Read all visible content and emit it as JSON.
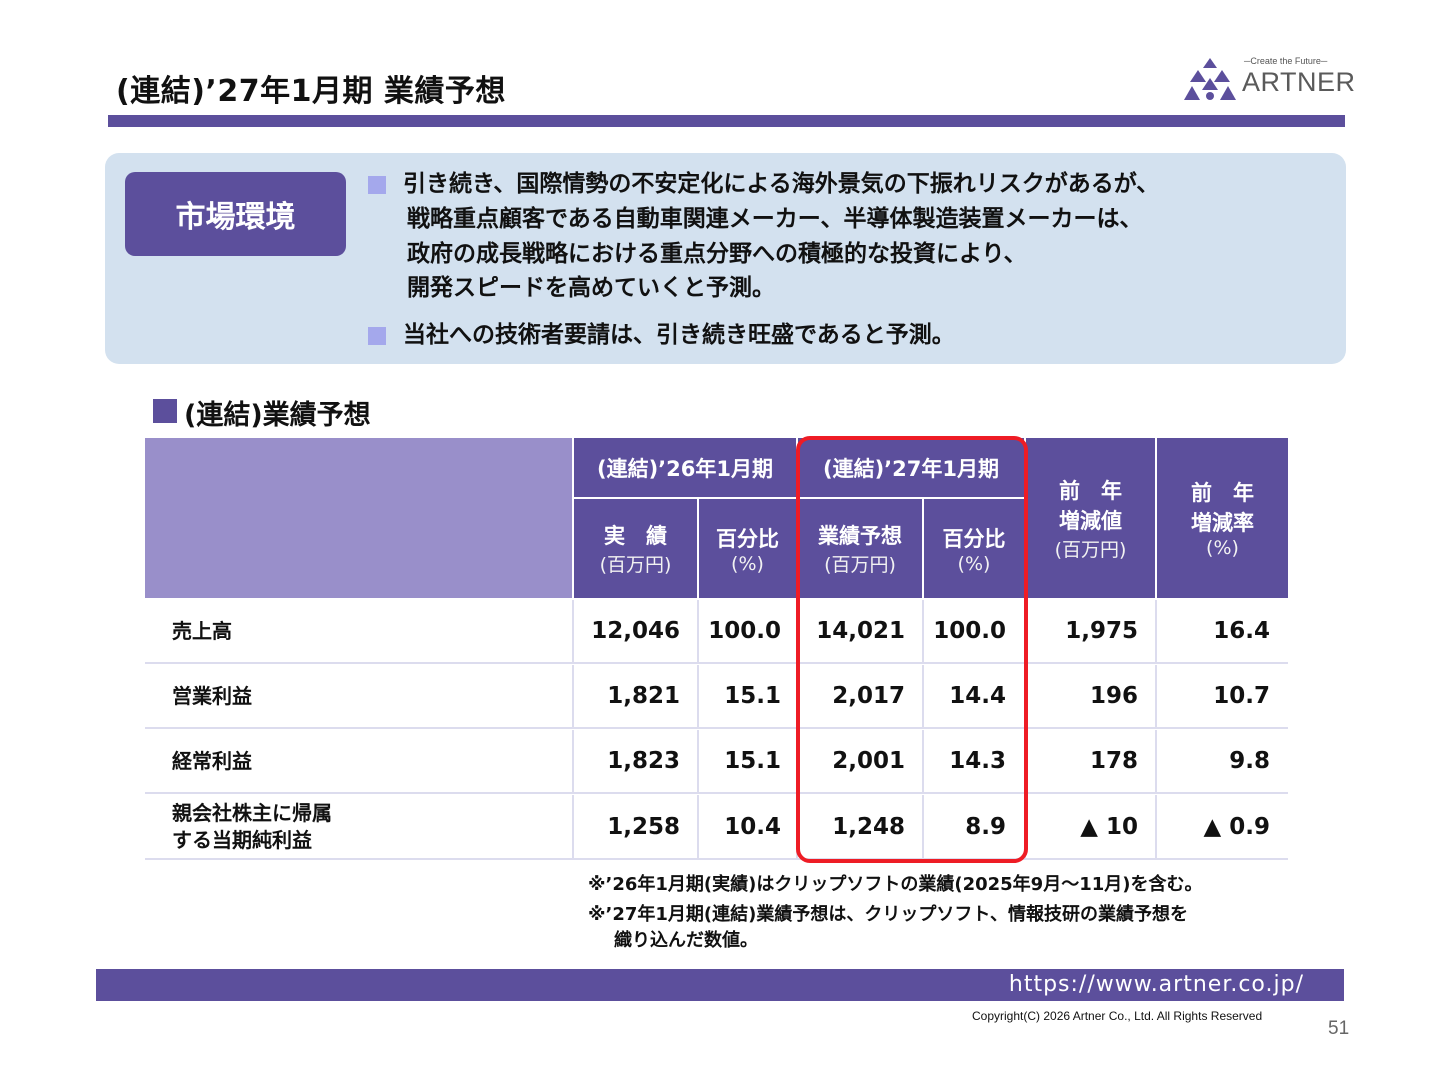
{
  "title": "(連結)’27年1月期 業績予想",
  "logo": {
    "tagline": "─Create the Future─",
    "name": "ARTNER"
  },
  "market": {
    "label": "市場環境",
    "bullet1": [
      "引き続き、国際情勢の不安定化による海外景気の下振れリスクがあるが、",
      "戦略重点顧客である自動車関連メーカー、半導体製造装置メーカーは、",
      "政府の成長戦略における重点分野への積極的な投資により、",
      "開発スピードを高めていくと予測。"
    ],
    "bullet2": "当社への技術者要請は、引き続き旺盛であると予測。"
  },
  "section_title": "(連結)業績予想",
  "table": {
    "col_group1": "(連結)’26年1月期",
    "col_group2": "(連結)’27年1月期",
    "sub_actual": "実　績",
    "sub_forecast": "業績予想",
    "sub_ratio": "百分比",
    "unit_million": "(百万円)",
    "unit_pct": "(%)",
    "yoy_value_line1": "前　年",
    "yoy_value_line2": "増減値",
    "yoy_rate_line1": "前　年",
    "yoy_rate_line2": "増減率",
    "rows": [
      {
        "label1": "売上高",
        "label2": "",
        "actual": "12,046",
        "ratio26": "100.0",
        "forecast": "14,021",
        "ratio27": "100.0",
        "yoy_value": "1,975",
        "yoy_rate": "16.4"
      },
      {
        "label1": "営業利益",
        "label2": "",
        "actual": "1,821",
        "ratio26": "15.1",
        "forecast": "2,017",
        "ratio27": "14.4",
        "yoy_value": "196",
        "yoy_rate": "10.7"
      },
      {
        "label1": "経常利益",
        "label2": "",
        "actual": "1,823",
        "ratio26": "15.1",
        "forecast": "2,001",
        "ratio27": "14.3",
        "yoy_value": "178",
        "yoy_rate": "9.8"
      },
      {
        "label1": "親会社株主に帰属",
        "label2": "する当期純利益",
        "actual": "1,258",
        "ratio26": "10.4",
        "forecast": "1,248",
        "ratio27": "8.9",
        "yoy_value": "▲ 10",
        "yoy_rate": "▲ 0.9"
      }
    ]
  },
  "notes": [
    "※’26年1月期(実績)はクリップソフトの業績(2025年9月～11月)を含む。",
    "※’27年1月期(連結)業績予想は、クリップソフト、情報技研の業績予想を",
    "織り込んだ数値。"
  ],
  "footer_url": "https://www.artner.co.jp/",
  "copyright": "Copyright(C) 2026 Artner Co., Ltd. All Rights Reserved",
  "page_number": "51",
  "colors": {
    "brand_purple": "#5c4f9c",
    "header_light": "#998fca",
    "market_bg": "#d3e1ef",
    "highlight_red": "#ee1c25",
    "bullet": "#a4a8ec"
  }
}
